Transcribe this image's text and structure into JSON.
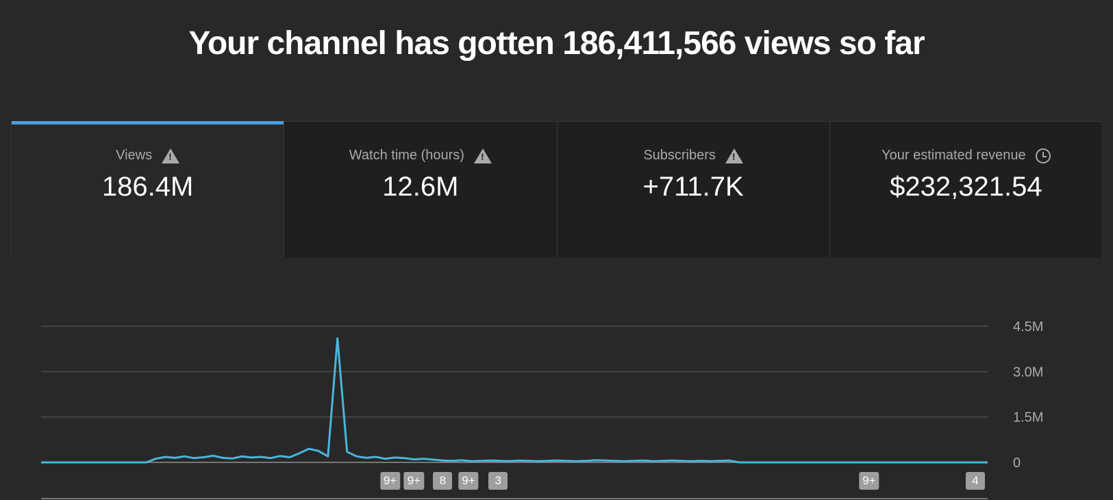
{
  "header": {
    "title": "Your channel has gotten 186,411,566 views so far"
  },
  "tabs": [
    {
      "label": "Views",
      "value": "186.4M",
      "icon": "warning-icon",
      "selected": true
    },
    {
      "label": "Watch time (hours)",
      "value": "12.6M",
      "icon": "warning-icon",
      "selected": false
    },
    {
      "label": "Subscribers",
      "value": "+711.7K",
      "icon": "warning-icon",
      "selected": false
    },
    {
      "label": "Your estimated revenue",
      "value": "$232,321.54",
      "icon": "clock-icon",
      "selected": false
    }
  ],
  "colors": {
    "accent": "#4a9ee0",
    "line": "#4ab5dc"
  },
  "chart_data": {
    "type": "line",
    "title": "",
    "xlabel": "",
    "ylabel": "",
    "ylim": [
      0,
      4.5
    ],
    "yticks": [
      {
        "v": 0,
        "label": "0"
      },
      {
        "v": 1.5,
        "label": "1.5M"
      },
      {
        "v": 3.0,
        "label": "3.0M"
      },
      {
        "v": 4.5,
        "label": "4.5M"
      }
    ],
    "grid": true,
    "series": [
      {
        "values": [
          0,
          0,
          0,
          0,
          0,
          0,
          0,
          0,
          0,
          0,
          0,
          0,
          0.12,
          0.18,
          0.15,
          0.2,
          0.14,
          0.17,
          0.22,
          0.15,
          0.13,
          0.2,
          0.16,
          0.18,
          0.14,
          0.21,
          0.17,
          0.3,
          0.45,
          0.38,
          0.2,
          4.1,
          0.35,
          0.2,
          0.15,
          0.18,
          0.12,
          0.16,
          0.14,
          0.1,
          0.12,
          0.09,
          0.06,
          0.05,
          0.07,
          0.04,
          0.05,
          0.06,
          0.05,
          0.04,
          0.06,
          0.05,
          0.04,
          0.05,
          0.06,
          0.05,
          0.04,
          0.05,
          0.07,
          0.06,
          0.05,
          0.04,
          0.05,
          0.06,
          0.04,
          0.05,
          0.06,
          0.05,
          0.04,
          0.05,
          0.04,
          0.05,
          0.06,
          0,
          0,
          0,
          0,
          0,
          0,
          0,
          0,
          0,
          0,
          0,
          0,
          0,
          0,
          0,
          0,
          0,
          0,
          0,
          0,
          0,
          0,
          0,
          0,
          0,
          0,
          0
        ]
      }
    ],
    "markers": [
      {
        "x": 36.5,
        "label": "9+"
      },
      {
        "x": 39,
        "label": "9+"
      },
      {
        "x": 42,
        "label": "8"
      },
      {
        "x": 44.7,
        "label": "9+"
      },
      {
        "x": 47.8,
        "label": "3"
      },
      {
        "x": 86.6,
        "label": "9+"
      },
      {
        "x": 97.7,
        "label": "4"
      }
    ]
  }
}
